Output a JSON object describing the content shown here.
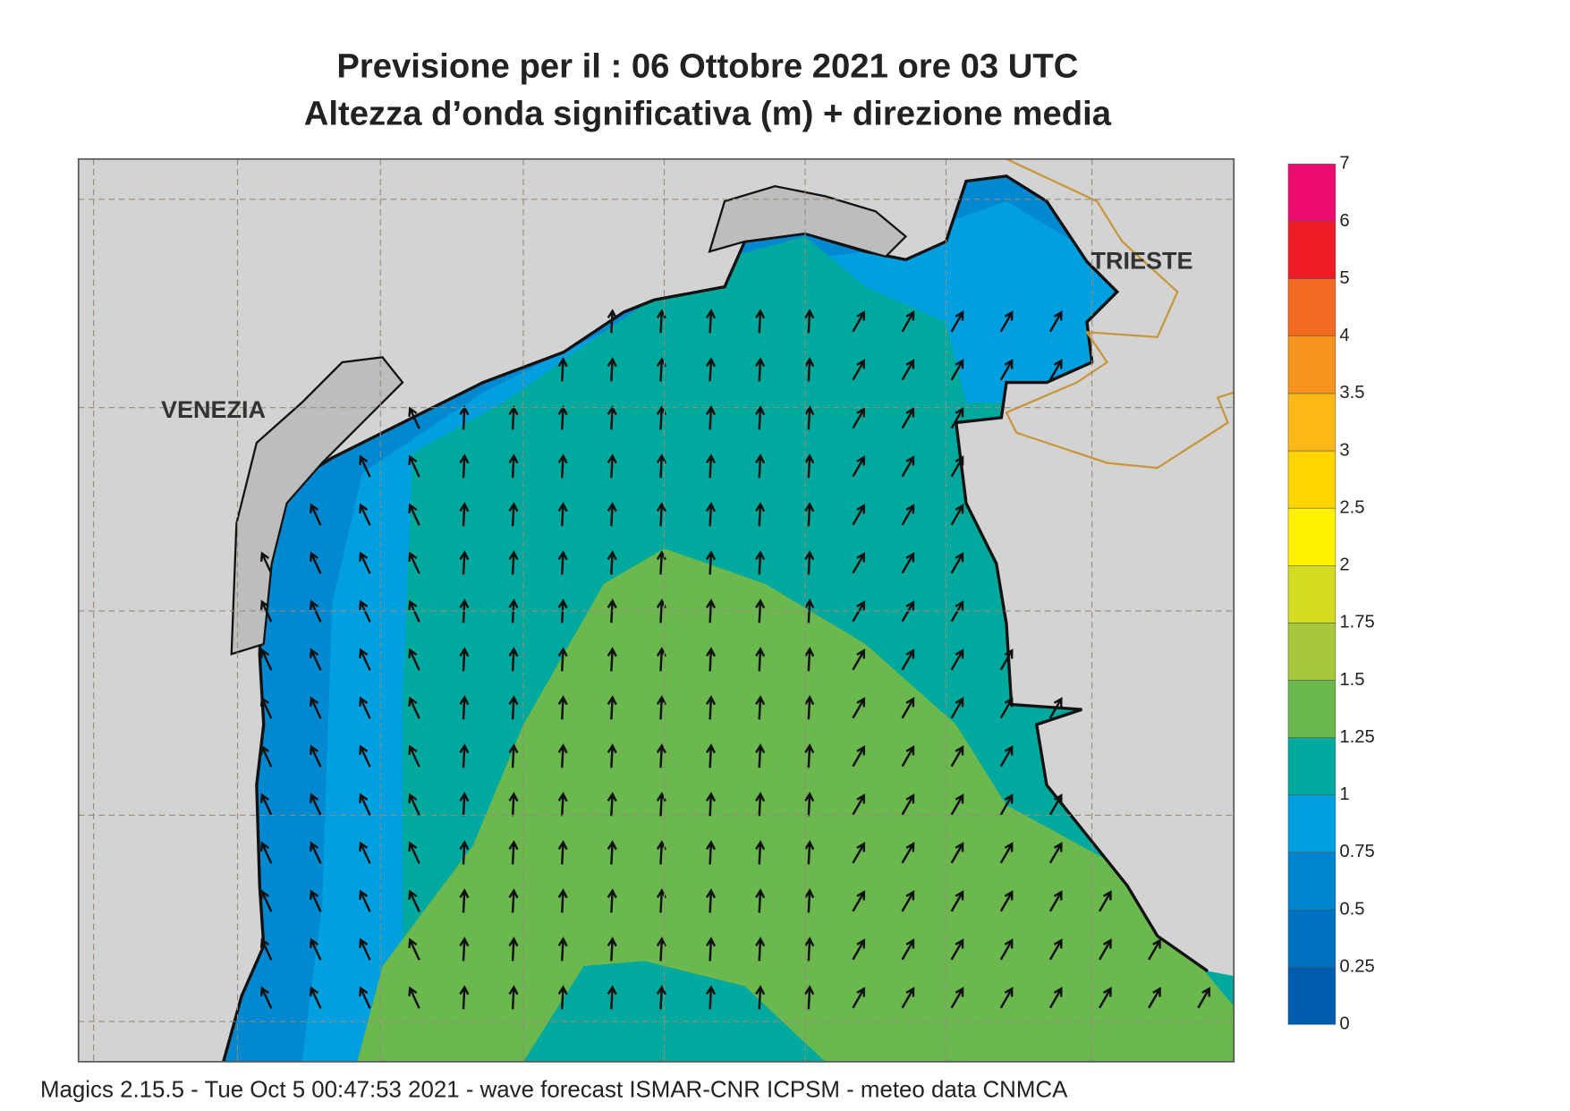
{
  "header": {
    "title": "Previsione per il  :  06  Ottobre  2021   ore 03 UTC",
    "subtitle": "Altezza d’onda significativa (m) + direzione media"
  },
  "places": [
    "VENEZIA",
    "TRIESTE"
  ],
  "legend": {
    "levels": [
      {
        "label": "0",
        "color": "#005db0"
      },
      {
        "label": "0.25",
        "color": "#0070c0"
      },
      {
        "label": "0.5",
        "color": "#0086d0"
      },
      {
        "label": "0.75",
        "color": "#009fe0"
      },
      {
        "label": "1",
        "color": "#00a99d"
      },
      {
        "label": "1.25",
        "color": "#6ab84e"
      },
      {
        "label": "1.5",
        "color": "#a6c83a"
      },
      {
        "label": "1.75",
        "color": "#d4dc21"
      },
      {
        "label": "2",
        "color": "#fff200"
      },
      {
        "label": "2.5",
        "color": "#ffd400"
      },
      {
        "label": "3",
        "color": "#fbb817"
      },
      {
        "label": "3.5",
        "color": "#f7941d"
      },
      {
        "label": "4",
        "color": "#f26b21"
      },
      {
        "label": "5",
        "color": "#ee1c24"
      },
      {
        "label": "6",
        "color": "#ec0c6f"
      }
    ],
    "top": "7"
  },
  "footer": "Magics 2.15.5 - Tue Oct  5 00:47:53 2021 - wave forecast  ISMAR-CNR  ICPSM - meteo data   CNMCA"
}
